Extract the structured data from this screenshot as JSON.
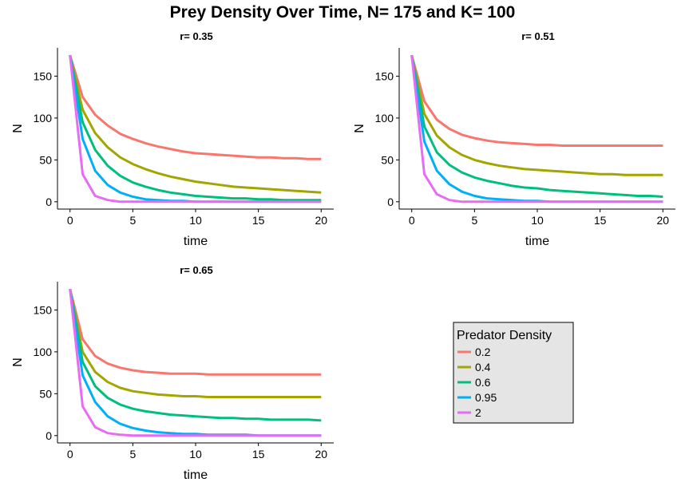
{
  "title": "Prey Density Over Time, N= 175 and K= 100",
  "legend": {
    "title": "Predator Density",
    "placement": "bottom-right",
    "entries": [
      {
        "label": "0.2",
        "color": "#F8766D"
      },
      {
        "label": "0.4",
        "color": "#A3A500"
      },
      {
        "label": "0.6",
        "color": "#00BF7D"
      },
      {
        "label": "0.95",
        "color": "#00B0F6"
      },
      {
        "label": "2",
        "color": "#E76BF3"
      }
    ]
  },
  "chart_data": [
    {
      "type": "line",
      "title": "r= 0.35",
      "xlabel": "time",
      "ylabel": "N",
      "xlim": [
        0,
        20
      ],
      "ylim": [
        0,
        175
      ],
      "xticks": [
        0,
        5,
        10,
        15,
        20
      ],
      "yticks": [
        0,
        50,
        100,
        150
      ],
      "grid": false,
      "x": [
        0,
        1,
        2,
        3,
        4,
        5,
        6,
        7,
        8,
        9,
        10,
        11,
        12,
        13,
        14,
        15,
        16,
        17,
        18,
        19,
        20
      ],
      "series": [
        {
          "name": "0.2",
          "values": [
            175,
            125,
            104,
            91,
            81,
            75,
            70,
            66,
            63,
            60,
            58,
            57,
            56,
            55,
            54,
            53,
            53,
            52,
            52,
            51,
            51
          ]
        },
        {
          "name": "0.4",
          "values": [
            175,
            110,
            82,
            65,
            53,
            45,
            39,
            34,
            30,
            27,
            24,
            22,
            20,
            18,
            17,
            16,
            15,
            14,
            13,
            12,
            11
          ]
        },
        {
          "name": "0.6",
          "values": [
            175,
            95,
            62,
            43,
            31,
            23,
            18,
            14,
            11,
            9,
            7,
            6,
            5,
            4,
            4,
            3,
            3,
            2,
            2,
            2,
            2
          ]
        },
        {
          "name": "0.95",
          "values": [
            175,
            75,
            37,
            20,
            11,
            6,
            3,
            2,
            1,
            1,
            0,
            0,
            0,
            0,
            0,
            0,
            0,
            0,
            0,
            0,
            0
          ]
        },
        {
          "name": "2",
          "values": [
            175,
            33,
            7,
            2,
            0,
            0,
            0,
            0,
            0,
            0,
            0,
            0,
            0,
            0,
            0,
            0,
            0,
            0,
            0,
            0,
            0
          ]
        }
      ]
    },
    {
      "type": "line",
      "title": "r= 0.51",
      "xlabel": "time",
      "ylabel": "N",
      "xlim": [
        0,
        20
      ],
      "ylim": [
        0,
        175
      ],
      "xticks": [
        0,
        5,
        10,
        15,
        20
      ],
      "yticks": [
        0,
        50,
        100,
        150
      ],
      "grid": false,
      "x": [
        0,
        1,
        2,
        3,
        4,
        5,
        6,
        7,
        8,
        9,
        10,
        11,
        12,
        13,
        14,
        15,
        16,
        17,
        18,
        19,
        20
      ],
      "series": [
        {
          "name": "0.2",
          "values": [
            175,
            120,
            98,
            87,
            80,
            76,
            73,
            71,
            70,
            69,
            68,
            68,
            67,
            67,
            67,
            67,
            67,
            67,
            67,
            67,
            67
          ]
        },
        {
          "name": "0.4",
          "values": [
            175,
            105,
            79,
            65,
            56,
            50,
            46,
            43,
            41,
            39,
            38,
            37,
            36,
            35,
            34,
            33,
            33,
            32,
            32,
            32,
            32
          ]
        },
        {
          "name": "0.6",
          "values": [
            175,
            90,
            59,
            44,
            35,
            29,
            25,
            22,
            19,
            17,
            16,
            14,
            13,
            12,
            11,
            10,
            9,
            8,
            7,
            7,
            6
          ]
        },
        {
          "name": "0.95",
          "values": [
            175,
            72,
            37,
            21,
            12,
            7,
            4,
            3,
            2,
            1,
            1,
            0,
            0,
            0,
            0,
            0,
            0,
            0,
            0,
            0,
            0
          ]
        },
        {
          "name": "2",
          "values": [
            175,
            33,
            9,
            2,
            0,
            0,
            0,
            0,
            0,
            0,
            0,
            0,
            0,
            0,
            0,
            0,
            0,
            0,
            0,
            0,
            0
          ]
        }
      ]
    },
    {
      "type": "line",
      "title": "r= 0.65",
      "xlabel": "time",
      "ylabel": "N",
      "xlim": [
        0,
        20
      ],
      "ylim": [
        0,
        175
      ],
      "xticks": [
        0,
        5,
        10,
        15,
        20
      ],
      "yticks": [
        0,
        50,
        100,
        150
      ],
      "grid": false,
      "x": [
        0,
        1,
        2,
        3,
        4,
        5,
        6,
        7,
        8,
        9,
        10,
        11,
        12,
        13,
        14,
        15,
        16,
        17,
        18,
        19,
        20
      ],
      "series": [
        {
          "name": "0.2",
          "values": [
            175,
            115,
            95,
            86,
            81,
            78,
            76,
            75,
            74,
            74,
            74,
            73,
            73,
            73,
            73,
            73,
            73,
            73,
            73,
            73,
            73
          ]
        },
        {
          "name": "0.4",
          "values": [
            175,
            100,
            76,
            64,
            57,
            53,
            51,
            49,
            48,
            47,
            47,
            46,
            46,
            46,
            46,
            46,
            46,
            46,
            46,
            46,
            46
          ]
        },
        {
          "name": "0.6",
          "values": [
            175,
            88,
            59,
            45,
            37,
            32,
            29,
            27,
            25,
            24,
            23,
            22,
            21,
            21,
            20,
            20,
            19,
            19,
            19,
            19,
            18
          ]
        },
        {
          "name": "0.95",
          "values": [
            175,
            72,
            40,
            23,
            14,
            9,
            6,
            4,
            3,
            2,
            2,
            1,
            1,
            1,
            1,
            0,
            0,
            0,
            0,
            0,
            0
          ]
        },
        {
          "name": "2",
          "values": [
            175,
            35,
            10,
            3,
            1,
            0,
            0,
            0,
            0,
            0,
            0,
            0,
            0,
            0,
            0,
            0,
            0,
            0,
            0,
            0,
            0
          ]
        }
      ]
    }
  ]
}
